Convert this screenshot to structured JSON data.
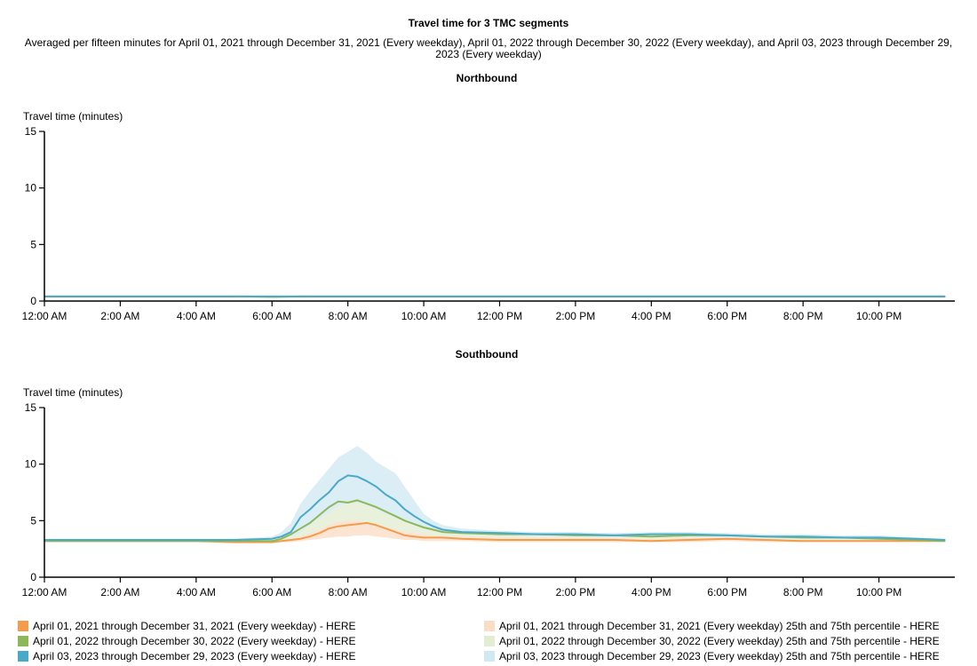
{
  "page": {
    "title": "Travel time for 3 TMC segments",
    "subtitle": "Averaged per fifteen minutes for April 01, 2021 through December 31, 2021 (Every weekday), April 01, 2022 through December 30, 2022 (Every weekday), and April 03, 2023 through December 29, 2023 (Every weekday)"
  },
  "colors": {
    "series": [
      "#f39c4c",
      "#8db858",
      "#4aa9c9"
    ],
    "bands": [
      "#fbdcc5",
      "#e2edd2",
      "#cfe8f2"
    ],
    "band_overlay": [
      "#fbe0cc",
      "#cfe2b6",
      "#bfe0ee"
    ]
  },
  "legend": {
    "series": [
      "April 01, 2021 through December 31, 2021 (Every weekday) - HERE",
      "April 01, 2022 through December 30, 2022 (Every weekday) - HERE",
      "April 03, 2023 through December 29, 2023 (Every weekday) - HERE"
    ],
    "bands": [
      "April 01, 2021 through December 31, 2021 (Every weekday) 25th and 75th percentile - HERE",
      "April 01, 2022 through December 30, 2022 (Every weekday) 25th and 75th percentile - HERE",
      "April 03, 2023 through December 29, 2023 (Every weekday) 25th and 75th percentile - HERE"
    ]
  },
  "chart_data": [
    {
      "type": "line",
      "title": "Northbound",
      "ylabel": "Travel time (minutes)",
      "xlabel": "",
      "x_unit": "hour of day",
      "xlim": [
        0,
        24
      ],
      "ylim": [
        0,
        15
      ],
      "y_ticks": [
        0,
        5,
        10,
        15
      ],
      "x_ticks": [
        0,
        2,
        4,
        6,
        8,
        10,
        12,
        14,
        16,
        18,
        20,
        22
      ],
      "x_tick_labels": [
        "12:00 AM",
        "2:00 AM",
        "4:00 AM",
        "6:00 AM",
        "8:00 AM",
        "10:00 AM",
        "12:00 PM",
        "2:00 PM",
        "4:00 PM",
        "6:00 PM",
        "8:00 PM",
        "10:00 PM"
      ],
      "grid": false,
      "x": [
        0,
        2,
        4,
        5.25,
        6,
        6.75,
        8,
        10,
        12,
        14,
        16,
        18,
        20,
        22,
        23.75
      ],
      "series": [
        {
          "values": [
            0.4,
            0.4,
            0.4,
            0.4,
            0.4,
            0.4,
            0.4,
            0.4,
            0.4,
            0.4,
            0.4,
            0.4,
            0.4,
            0.4,
            0.4
          ],
          "p25": [
            0.38,
            0.38,
            0.38,
            0.3,
            0.25,
            0.3,
            0.38,
            0.38,
            0.38,
            0.38,
            0.38,
            0.38,
            0.38,
            0.38,
            0.38
          ],
          "p75": [
            0.42,
            0.42,
            0.42,
            0.42,
            0.42,
            0.42,
            0.42,
            0.42,
            0.42,
            0.42,
            0.42,
            0.42,
            0.42,
            0.42,
            0.42
          ]
        },
        {
          "values": [
            0.4,
            0.4,
            0.4,
            0.4,
            0.38,
            0.4,
            0.4,
            0.4,
            0.4,
            0.4,
            0.4,
            0.4,
            0.4,
            0.4,
            0.4
          ],
          "p25": [
            0.38,
            0.38,
            0.38,
            0.3,
            0.22,
            0.3,
            0.38,
            0.38,
            0.38,
            0.38,
            0.38,
            0.38,
            0.38,
            0.38,
            0.38
          ],
          "p75": [
            0.42,
            0.42,
            0.42,
            0.42,
            0.42,
            0.42,
            0.42,
            0.42,
            0.42,
            0.42,
            0.42,
            0.42,
            0.42,
            0.42,
            0.42
          ]
        },
        {
          "values": [
            0.4,
            0.4,
            0.4,
            0.4,
            0.4,
            0.4,
            0.4,
            0.4,
            0.4,
            0.4,
            0.4,
            0.4,
            0.4,
            0.4,
            0.4
          ],
          "p25": [
            0.38,
            0.38,
            0.38,
            0.38,
            0.38,
            0.38,
            0.38,
            0.38,
            0.38,
            0.38,
            0.38,
            0.38,
            0.38,
            0.38,
            0.38
          ],
          "p75": [
            0.42,
            0.42,
            0.42,
            0.42,
            0.42,
            0.42,
            0.42,
            0.42,
            0.42,
            0.42,
            0.42,
            0.42,
            0.42,
            0.42,
            0.42
          ]
        }
      ]
    },
    {
      "type": "line",
      "title": "Southbound",
      "ylabel": "Travel time (minutes)",
      "xlabel": "",
      "x_unit": "hour of day",
      "xlim": [
        0,
        24
      ],
      "ylim": [
        0,
        15
      ],
      "y_ticks": [
        0,
        5,
        10,
        15
      ],
      "x_ticks": [
        0,
        2,
        4,
        6,
        8,
        10,
        12,
        14,
        16,
        18,
        20,
        22
      ],
      "x_tick_labels": [
        "12:00 AM",
        "2:00 AM",
        "4:00 AM",
        "6:00 AM",
        "8:00 AM",
        "10:00 AM",
        "12:00 PM",
        "2:00 PM",
        "4:00 PM",
        "6:00 PM",
        "8:00 PM",
        "10:00 PM"
      ],
      "grid": false,
      "x": [
        0,
        2,
        4,
        5,
        6,
        6.25,
        6.5,
        6.75,
        7,
        7.25,
        7.5,
        7.75,
        8,
        8.25,
        8.5,
        8.75,
        9,
        9.25,
        9.5,
        9.75,
        10,
        10.25,
        10.5,
        11,
        12,
        13,
        14,
        15,
        16,
        17,
        18,
        19,
        20,
        21,
        22,
        23,
        23.75
      ],
      "series": [
        {
          "values": [
            3.2,
            3.2,
            3.2,
            3.1,
            3.1,
            3.2,
            3.3,
            3.4,
            3.6,
            3.9,
            4.3,
            4.5,
            4.6,
            4.7,
            4.8,
            4.6,
            4.3,
            4.0,
            3.7,
            3.6,
            3.5,
            3.5,
            3.5,
            3.4,
            3.3,
            3.3,
            3.3,
            3.3,
            3.2,
            3.3,
            3.4,
            3.3,
            3.2,
            3.2,
            3.2,
            3.2,
            3.2
          ],
          "p25": [
            3.1,
            3.1,
            3.1,
            3.0,
            3.0,
            3.1,
            3.1,
            3.2,
            3.3,
            3.4,
            3.5,
            3.6,
            3.6,
            3.7,
            3.7,
            3.6,
            3.5,
            3.4,
            3.3,
            3.3,
            3.2,
            3.2,
            3.2,
            3.2,
            3.1,
            3.1,
            3.1,
            3.1,
            3.1,
            3.1,
            3.2,
            3.1,
            3.1,
            3.1,
            3.1,
            3.1,
            3.1
          ],
          "p75": [
            3.3,
            3.3,
            3.3,
            3.2,
            3.3,
            3.4,
            3.6,
            3.9,
            4.3,
            4.9,
            5.4,
            5.6,
            5.5,
            5.4,
            5.3,
            5.0,
            4.6,
            4.3,
            4.0,
            3.9,
            3.8,
            3.8,
            3.7,
            3.6,
            3.5,
            3.5,
            3.5,
            3.5,
            3.4,
            3.5,
            3.6,
            3.5,
            3.4,
            3.4,
            3.4,
            3.4,
            3.3
          ]
        },
        {
          "values": [
            3.2,
            3.2,
            3.2,
            3.2,
            3.2,
            3.4,
            3.8,
            4.3,
            4.8,
            5.5,
            6.2,
            6.7,
            6.6,
            6.8,
            6.5,
            6.2,
            5.8,
            5.4,
            5.0,
            4.7,
            4.4,
            4.2,
            4.0,
            3.9,
            3.8,
            3.8,
            3.7,
            3.7,
            3.6,
            3.7,
            3.7,
            3.6,
            3.5,
            3.5,
            3.4,
            3.3,
            3.2
          ],
          "p25": [
            3.1,
            3.1,
            3.1,
            3.1,
            3.1,
            3.2,
            3.4,
            3.6,
            3.9,
            4.2,
            4.6,
            4.9,
            5.0,
            5.0,
            4.8,
            4.6,
            4.4,
            4.2,
            4.0,
            3.9,
            3.8,
            3.7,
            3.6,
            3.6,
            3.5,
            3.5,
            3.5,
            3.5,
            3.4,
            3.5,
            3.5,
            3.4,
            3.3,
            3.3,
            3.3,
            3.2,
            3.1
          ],
          "p75": [
            3.3,
            3.3,
            3.3,
            3.3,
            3.4,
            3.8,
            4.5,
            5.3,
            6.0,
            6.8,
            7.5,
            8.0,
            8.0,
            8.0,
            7.8,
            7.5,
            7.0,
            6.4,
            5.8,
            5.2,
            4.8,
            4.5,
            4.3,
            4.1,
            4.0,
            4.0,
            3.9,
            3.9,
            3.8,
            3.9,
            3.9,
            3.8,
            3.7,
            3.6,
            3.5,
            3.4,
            3.3
          ]
        },
        {
          "values": [
            3.3,
            3.3,
            3.3,
            3.3,
            3.4,
            3.6,
            4.0,
            5.3,
            6.0,
            6.8,
            7.5,
            8.5,
            9.0,
            8.9,
            8.5,
            8.0,
            7.3,
            6.8,
            6.0,
            5.4,
            4.9,
            4.5,
            4.2,
            4.0,
            3.9,
            3.8,
            3.8,
            3.7,
            3.8,
            3.8,
            3.7,
            3.6,
            3.6,
            3.5,
            3.5,
            3.4,
            3.3
          ],
          "p25": [
            3.2,
            3.2,
            3.2,
            3.2,
            3.3,
            3.4,
            3.6,
            4.0,
            4.6,
            5.2,
            5.7,
            6.3,
            6.6,
            6.6,
            6.4,
            6.0,
            5.6,
            5.3,
            4.9,
            4.6,
            4.3,
            4.1,
            3.9,
            3.8,
            3.7,
            3.6,
            3.6,
            3.5,
            3.6,
            3.6,
            3.5,
            3.5,
            3.4,
            3.4,
            3.3,
            3.3,
            3.2
          ],
          "p75": [
            3.4,
            3.4,
            3.4,
            3.4,
            3.6,
            4.0,
            4.8,
            6.5,
            7.6,
            8.6,
            9.6,
            10.6,
            11.1,
            11.6,
            11.0,
            10.2,
            9.7,
            9.2,
            8.0,
            6.8,
            5.6,
            5.0,
            4.6,
            4.3,
            4.1,
            4.0,
            4.0,
            3.9,
            4.0,
            4.0,
            3.9,
            3.8,
            3.8,
            3.7,
            3.7,
            3.5,
            3.4
          ]
        }
      ]
    }
  ]
}
